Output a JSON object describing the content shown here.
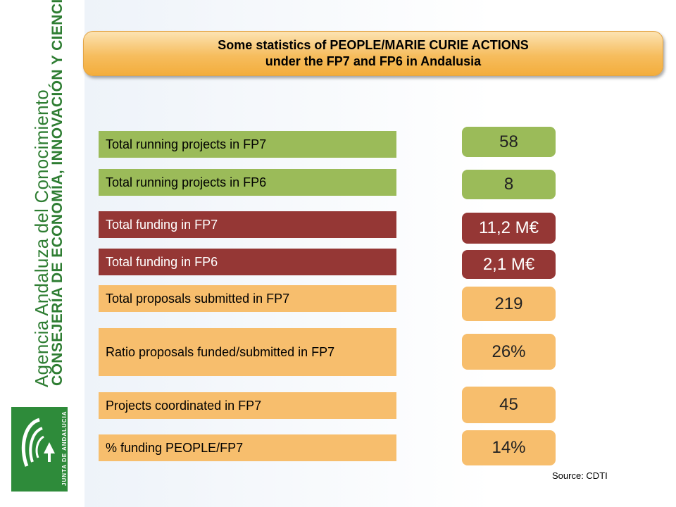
{
  "sidebar": {
    "agency_text": "Agencia Andaluza del Conocimiento",
    "ministry_text": "CONSEJERÍA DE ECONOMÍA, INNOVACIÓN Y CIENCIA",
    "logo_text": "JUNTA DE ANDALUCIA"
  },
  "header": {
    "line1": "Some statistics of PEOPLE/MARIE CURIE ACTIONS",
    "line2": "under the FP7 and FP6 in Andalusia"
  },
  "rows": [
    {
      "label": "Total running projects in FP7",
      "value": "58",
      "color": "#9bbb59"
    },
    {
      "label": "Total running projects in FP6",
      "value": "8",
      "color": "#9bbb59"
    },
    {
      "label": "Total funding in FP7",
      "value": "11,2 M€",
      "color": "#953735"
    },
    {
      "label": "Total funding in FP6",
      "value": "2,1 M€",
      "color": "#953735"
    },
    {
      "label": "Total proposals submitted in FP7",
      "value": "219",
      "color": "#f7be6d"
    },
    {
      "label": "Ratio proposals funded/submitted in FP7",
      "value": "26%",
      "color": "#f7be6d"
    },
    {
      "label": "Projects coordinated in FP7",
      "value": "45",
      "color": "#f7be6d"
    },
    {
      "label": "% funding PEOPLE/FP7",
      "value": "14%",
      "color": "#f7be6d"
    }
  ],
  "source": "Source: CDTI"
}
